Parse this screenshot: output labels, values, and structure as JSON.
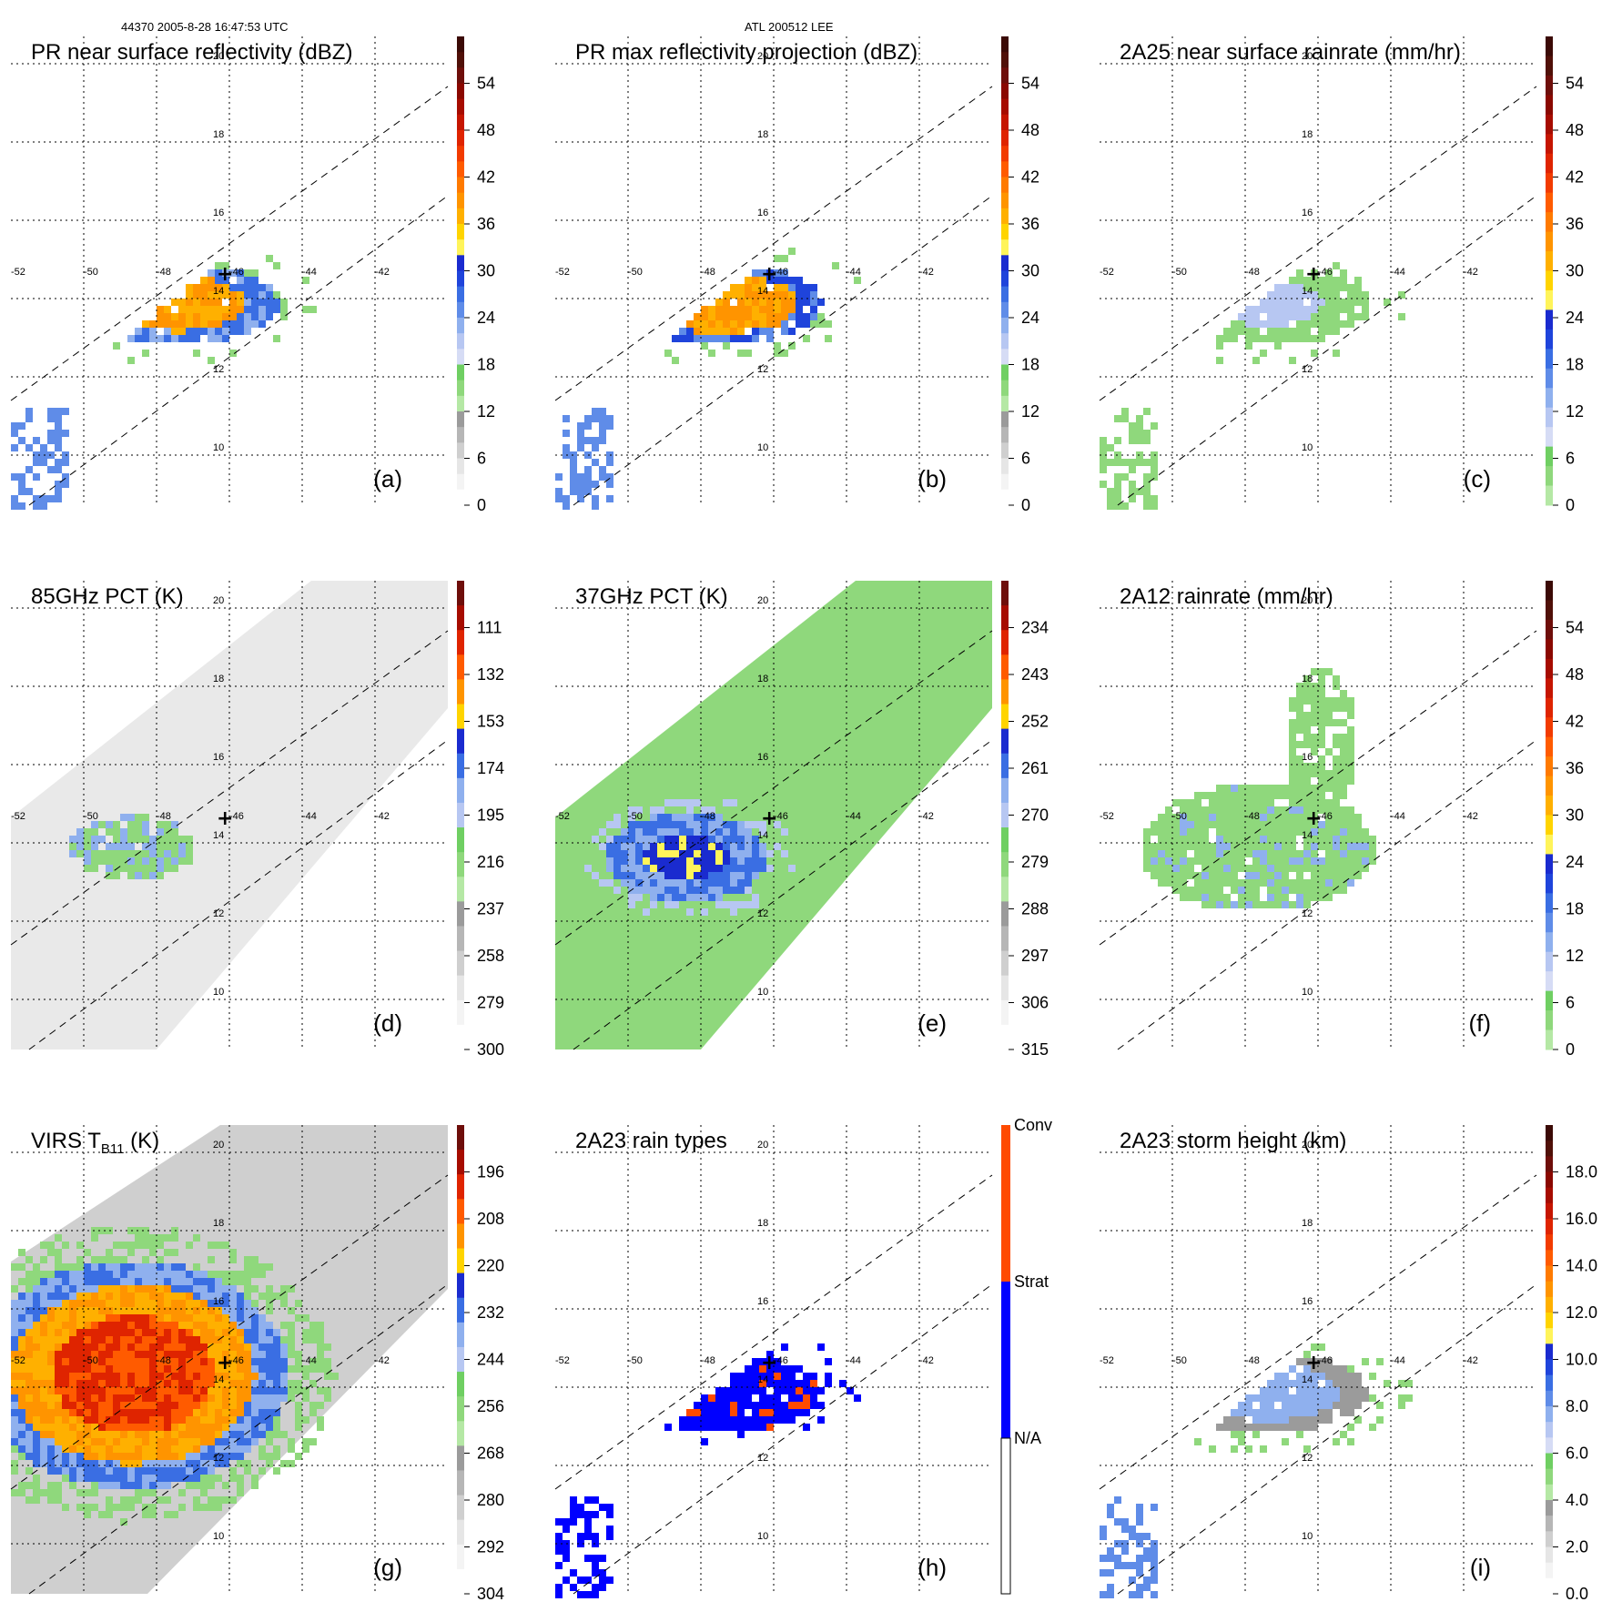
{
  "header": {
    "orbit_info": "44370 2005-8-28 16:47:53 UTC",
    "storm_info": "ATL 200512 LEE"
  },
  "geo_labels": {
    "lon": [
      "-52",
      "-50",
      "-48",
      "-46",
      "-44",
      "-42"
    ],
    "lat": [
      "10",
      "12",
      "14",
      "16",
      "18",
      "20"
    ]
  },
  "panels": [
    {
      "id": "a",
      "title": "PR near surface reflectivity (dBZ)",
      "label": "(a)",
      "scale": "pr",
      "ticks": [
        "54",
        "48",
        "42",
        "36",
        "30",
        "24",
        "18",
        "12",
        "6",
        "0"
      ],
      "field": "swath_pr"
    },
    {
      "id": "b",
      "title": "PR max reflectivity projection (dBZ)",
      "label": "(b)",
      "scale": "pr",
      "ticks": [
        "54",
        "48",
        "42",
        "36",
        "30",
        "24",
        "18",
        "12",
        "6",
        "0"
      ],
      "field": "swath_prmax"
    },
    {
      "id": "c",
      "title": "2A25 near surface rainrate (mm/hr)",
      "label": "(c)",
      "scale": "rain",
      "ticks": [
        "54",
        "48",
        "42",
        "36",
        "30",
        "24",
        "18",
        "12",
        "6",
        "0"
      ],
      "field": "swath_rain"
    },
    {
      "id": "d",
      "title": "85GHz PCT (K)",
      "label": "(d)",
      "scale": "pct85",
      "ticks": [
        "111",
        "132",
        "153",
        "174",
        "195",
        "216",
        "237",
        "258",
        "279",
        "300"
      ],
      "field": "tmi85"
    },
    {
      "id": "e",
      "title": "37GHz PCT (K)",
      "label": "(e)",
      "scale": "pct37",
      "ticks": [
        "234",
        "243",
        "252",
        "261",
        "270",
        "279",
        "288",
        "297",
        "306",
        "315"
      ],
      "field": "tmi37"
    },
    {
      "id": "f",
      "title": "2A12 rainrate (mm/hr)",
      "label": "(f)",
      "scale": "rain",
      "ticks": [
        "54",
        "48",
        "42",
        "36",
        "30",
        "24",
        "18",
        "12",
        "6",
        "0"
      ],
      "field": "tmirain"
    },
    {
      "id": "g",
      "title": "VIRS T",
      "title_sub": "B11",
      "title_tail": " (K)",
      "label": "(g)",
      "scale": "virs",
      "ticks": [
        "196",
        "208",
        "220",
        "232",
        "244",
        "256",
        "268",
        "280",
        "292",
        "304"
      ],
      "field": "virs"
    },
    {
      "id": "h",
      "title": "2A23 rain types",
      "label": "(h)",
      "scale": "types",
      "ticks": [
        "Conv",
        "Strat",
        "N/A"
      ],
      "field": "types"
    },
    {
      "id": "i",
      "title": "2A23 storm height (km)",
      "label": "(i)",
      "scale": "height",
      "ticks": [
        "18.0",
        "16.0",
        "14.0",
        "12.0",
        "10.0",
        "8.0",
        "6.0",
        "4.0",
        "2.0",
        "0.0"
      ],
      "field": "height"
    }
  ],
  "colors": {
    "pr": [
      "#ffffff",
      "#f4f4f4",
      "#e6e6e6",
      "#cfcfcf",
      "#b6b6b6",
      "#9b9b9b",
      "#b5e8a5",
      "#8fd87c",
      "#6fcf62",
      "#d6dcf5",
      "#b7c7f2",
      "#8fb0ee",
      "#5f8ce8",
      "#3a6ee3",
      "#1f44db",
      "#1a2bcf",
      "#fff45a",
      "#ffd400",
      "#ffb000",
      "#ff9400",
      "#ff7a00",
      "#ff5b00",
      "#f23b00",
      "#df2400",
      "#c51500",
      "#a60c00",
      "#8a0800",
      "#6e0e0a",
      "#501008",
      "#3b0a06"
    ],
    "rain": [
      "#b5e8a5",
      "#8fd87c",
      "#6fcf62",
      "#d6dcf5",
      "#b7c7f2",
      "#8fb0ee",
      "#5f8ce8",
      "#3a6ee3",
      "#1f44db",
      "#1a2bcf",
      "#fff45a",
      "#ffd400",
      "#ffb000",
      "#ff9400",
      "#ff7a00",
      "#ff5b00",
      "#f23b00",
      "#df2400",
      "#c51500",
      "#a60c00",
      "#8a0800",
      "#6e0e0a",
      "#501008",
      "#3b0a06"
    ],
    "height": [
      "#ffffff",
      "#f4f4f4",
      "#e6e6e6",
      "#cfcfcf",
      "#b6b6b6",
      "#9b9b9b",
      "#b5e8a5",
      "#8fd87c",
      "#6fcf62",
      "#d6dcf5",
      "#b7c7f2",
      "#8fb0ee",
      "#5f8ce8",
      "#3a6ee3",
      "#1f44db",
      "#1a2bcf",
      "#fff45a",
      "#ffd400",
      "#ffb000",
      "#ff9400",
      "#ff7a00",
      "#ff5b00",
      "#f23b00",
      "#df2400",
      "#c51500",
      "#a60c00",
      "#8a0800",
      "#6e0e0a",
      "#501008",
      "#3b0a06"
    ],
    "types": [
      "#ffffff",
      "#0000ff",
      "#ff4a00"
    ]
  }
}
